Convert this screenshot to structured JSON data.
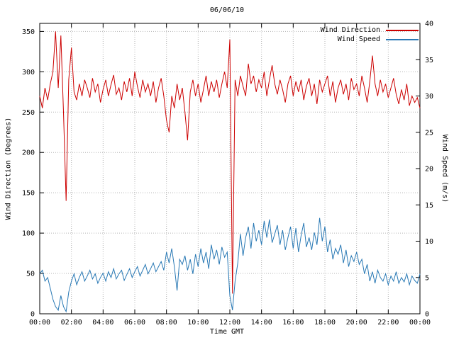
{
  "chart_data": {
    "type": "line",
    "title": "06/06/10",
    "xlabel": "Time GMT",
    "ylabel_left": "Wind Direction (Degrees)",
    "ylabel_right": "Wind Speed (m/s)",
    "grid": true,
    "legend_position": "top-right",
    "x_tick_labels": [
      "00:00",
      "02:00",
      "04:00",
      "06:00",
      "08:00",
      "10:00",
      "12:00",
      "14:00",
      "16:00",
      "18:00",
      "20:00",
      "22:00",
      "00:00"
    ],
    "x_minutes_step": 10,
    "x_range_minutes": [
      0,
      1440
    ],
    "y_left": {
      "range": [
        0,
        360
      ],
      "ticks": [
        0,
        50,
        100,
        150,
        200,
        250,
        300,
        350
      ]
    },
    "y_right": {
      "range": [
        0,
        40
      ],
      "ticks": [
        0,
        5,
        10,
        15,
        20,
        25,
        30,
        35,
        40
      ]
    },
    "series": [
      {
        "name": "Wind Direction",
        "axis": "left",
        "color": "#cc0000",
        "values": [
          270,
          255,
          280,
          265,
          285,
          300,
          350,
          280,
          345,
          250,
          140,
          290,
          330,
          275,
          265,
          285,
          270,
          290,
          280,
          268,
          292,
          275,
          285,
          262,
          278,
          290,
          270,
          284,
          296,
          272,
          280,
          265,
          288,
          275,
          292,
          270,
          300,
          282,
          268,
          290,
          275,
          285,
          270,
          288,
          262,
          280,
          292,
          270,
          240,
          225,
          270,
          255,
          285,
          265,
          280,
          250,
          215,
          275,
          290,
          270,
          285,
          262,
          278,
          295,
          270,
          288,
          275,
          290,
          268,
          285,
          300,
          280,
          340,
          25,
          290,
          270,
          295,
          282,
          270,
          310,
          285,
          295,
          275,
          290,
          280,
          300,
          270,
          290,
          308,
          285,
          272,
          290,
          278,
          262,
          285,
          295,
          270,
          288,
          275,
          290,
          265,
          282,
          292,
          270,
          285,
          260,
          290,
          275,
          285,
          295,
          270,
          288,
          262,
          280,
          290,
          272,
          285,
          265,
          292,
          278,
          285,
          270,
          295,
          280,
          262,
          288,
          320,
          285,
          270,
          290,
          275,
          285,
          268,
          280,
          292,
          272,
          260,
          278,
          265,
          285,
          258,
          270,
          262,
          268,
          255
        ]
      },
      {
        "name": "Wind Speed",
        "axis": "right",
        "color": "#2878b4",
        "values": [
          5.5,
          6.0,
          4.5,
          5.0,
          3.5,
          2.0,
          1.0,
          0.5,
          2.5,
          1.0,
          0.3,
          3.0,
          4.5,
          5.5,
          4.0,
          5.0,
          5.8,
          4.5,
          5.2,
          6.0,
          4.8,
          5.5,
          4.2,
          5.0,
          5.6,
          4.5,
          5.8,
          5.0,
          6.2,
          4.8,
          5.5,
          6.0,
          4.6,
          5.4,
          6.2,
          5.0,
          5.8,
          6.5,
          5.2,
          6.0,
          6.8,
          5.5,
          6.2,
          7.0,
          5.8,
          6.5,
          7.2,
          6.0,
          8.5,
          7.0,
          9.0,
          6.5,
          3.2,
          7.5,
          6.8,
          8.0,
          6.0,
          7.5,
          5.5,
          8.2,
          6.5,
          9.0,
          7.0,
          8.5,
          6.2,
          9.5,
          7.5,
          8.8,
          6.8,
          9.2,
          7.8,
          8.5,
          2.5,
          0.5,
          4.5,
          7.0,
          11.0,
          8.0,
          10.5,
          12.0,
          9.0,
          12.5,
          10.0,
          11.5,
          9.5,
          12.8,
          10.5,
          13.0,
          9.8,
          11.0,
          12.2,
          9.5,
          11.5,
          8.8,
          10.5,
          12.0,
          9.0,
          11.8,
          8.5,
          10.8,
          12.5,
          9.2,
          10.5,
          8.8,
          11.2,
          9.5,
          13.2,
          10.0,
          12.0,
          8.5,
          10.2,
          7.5,
          9.0,
          8.2,
          9.5,
          7.0,
          8.8,
          6.5,
          8.0,
          7.2,
          8.5,
          6.8,
          7.5,
          5.5,
          6.8,
          4.5,
          5.8,
          4.2,
          6.0,
          5.0,
          4.5,
          5.5,
          4.0,
          5.2,
          4.5,
          5.8,
          4.2,
          5.0,
          4.4,
          5.5,
          4.0,
          5.2,
          4.6,
          4.2,
          5.5
        ]
      }
    ]
  }
}
